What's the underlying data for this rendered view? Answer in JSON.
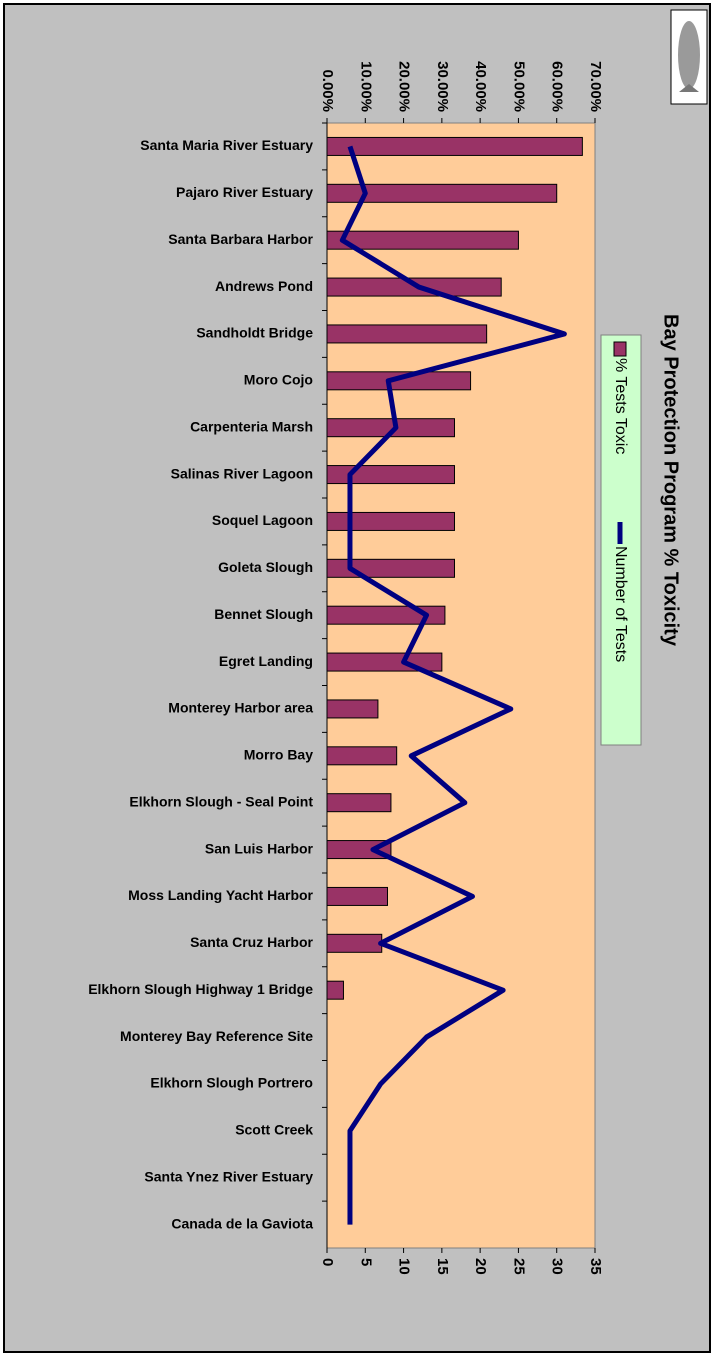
{
  "chart_data": {
    "type": "bar",
    "horizontal": true,
    "title": "Bay Protection Program % Toxicity",
    "categories": [
      "Santa Maria River Estuary",
      "Pajaro River Estuary",
      "Santa Barbara Harbor",
      "Andrews Pond",
      "Sandholdt Bridge",
      "Moro Cojo",
      "Carpenteria Marsh",
      "Salinas River Lagoon",
      "Soquel Lagoon",
      "Goleta Slough",
      "Bennet Slough",
      "Egret Landing",
      "Monterey Harbor area",
      "Morro Bay",
      "Elkhorn Slough - Seal Point",
      "San Luis Harbor",
      "Moss Landing Yacht Harbor",
      "Santa Cruz Harbor",
      "Elkhorn Slough Highway 1 Bridge",
      "Monterey Bay Reference Site",
      "Elkhorn Slough Portrero",
      "Scott Creek",
      "Santa Ynez River Estuary",
      "Canada de la Gaviota"
    ],
    "series": [
      {
        "name": "% Tests Toxic",
        "type": "bar",
        "color": "#993366",
        "values": [
          66.7,
          60,
          50,
          45.5,
          41.7,
          37.5,
          33.3,
          33.3,
          33.3,
          33.3,
          30.8,
          30,
          13.3,
          18.2,
          16.7,
          16.7,
          15.8,
          14.3,
          4.3,
          0,
          0,
          0,
          0,
          0
        ]
      },
      {
        "name": "Number of Tests",
        "type": "line",
        "axis": "y2",
        "color": "#000080",
        "values": [
          3,
          5,
          2,
          12,
          31,
          8,
          9,
          3,
          3,
          3,
          13,
          10,
          24,
          11,
          18,
          6,
          19,
          7,
          23,
          13,
          7,
          3,
          3,
          3
        ]
      }
    ],
    "ylim": [
      0,
      70
    ],
    "yticks": [
      {
        "value": 0,
        "label": "0.00%"
      },
      {
        "value": 10,
        "label": "10.00%"
      },
      {
        "value": 20,
        "label": "20.00%"
      },
      {
        "value": 30,
        "label": "30.00%"
      },
      {
        "value": 40,
        "label": "40.00%"
      },
      {
        "value": 50,
        "label": "50.00%"
      },
      {
        "value": 60,
        "label": "60.00%"
      },
      {
        "value": 70,
        "label": "70.00%"
      }
    ],
    "y2lim": [
      0,
      35
    ],
    "y2ticks": [
      0,
      5,
      10,
      15,
      20,
      25,
      30,
      35
    ]
  }
}
